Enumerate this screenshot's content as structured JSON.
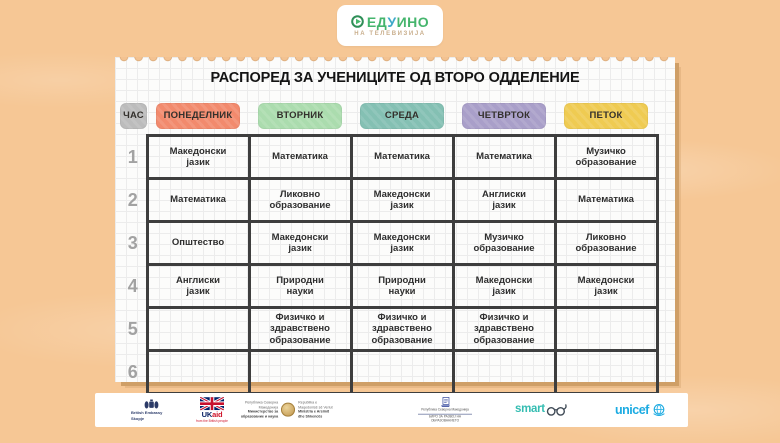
{
  "logo": {
    "brand": "ЕДУИНО",
    "letter_colors": [
      "#45b56d",
      "#45b56d",
      "#3fa9c9",
      "#45b56d",
      "#45b56d",
      "#45b56d"
    ],
    "subtitle": "НА ТЕЛЕВИЗИЈА"
  },
  "schedule": {
    "title": "РАСПОРЕД ЗА УЧЕНИЦИТЕ ОД ВТОРО ОДДЕЛЕНИЕ",
    "hour_header": "ЧАС",
    "hour_header_color": "#bcbcbc",
    "days": [
      {
        "label": "ПОНЕДЕЛНИК",
        "color": "#f28a6d"
      },
      {
        "label": "ВТОРНИК",
        "color": "#abdcae"
      },
      {
        "label": "СРЕДА",
        "color": "#84c0b3"
      },
      {
        "label": "ЧЕТВРТОК",
        "color": "#a99fc9"
      },
      {
        "label": "ПЕТОК",
        "color": "#efcb52"
      }
    ],
    "rows": [
      {
        "hour": "1",
        "subjects": [
          "Македонски\nјазик",
          "Математика",
          "Математика",
          "Математика",
          "Музичко\nобразование"
        ]
      },
      {
        "hour": "2",
        "subjects": [
          "Математика",
          "Ликовно\nобразование",
          "Македонски\nјазик",
          "Англиски\nјазик",
          "Математика"
        ]
      },
      {
        "hour": "3",
        "subjects": [
          "Општество",
          "Македонски\nјазик",
          "Македонски\nјазик",
          "Музичко\nобразование",
          "Ликовно\nобразование"
        ]
      },
      {
        "hour": "4",
        "subjects": [
          "Англиски\nјазик",
          "Природни\nнауки",
          "Природни\nнауки",
          "Македонски\nјазик",
          "Македонски\nјазик"
        ]
      },
      {
        "hour": "5",
        "subjects": [
          "",
          "Физичко и\nздравствено\nобразование",
          "Физичко и\nздравствено\nобразование",
          "Физичко и\nздравствено\nобразование",
          ""
        ]
      },
      {
        "hour": "6",
        "subjects": [
          "",
          "",
          "",
          "",
          ""
        ]
      }
    ]
  },
  "footer": {
    "embassy_line1": "British Embassy",
    "embassy_line2": "Skopje",
    "ukaid_uk": "UK",
    "ukaid_aid": "aid",
    "ukaid_tagline": "from the British people",
    "ministry_mk_line1": "Република Северна Македонија",
    "ministry_mk_line2": "Министерство за образование и наука",
    "ministry_sq_line1": "Republika e Maqedonisë së Veriut",
    "ministry_sq_line2": "Ministria e Arsimit dhe Shkencës",
    "bureau_line1": "Република Северна Македонија",
    "bureau_line2": "БИРО ЗА РАЗВОЈ НА ОБРАЗОВАНИЕТО",
    "smartup_text": "smart",
    "unicef_text": "unicef"
  }
}
